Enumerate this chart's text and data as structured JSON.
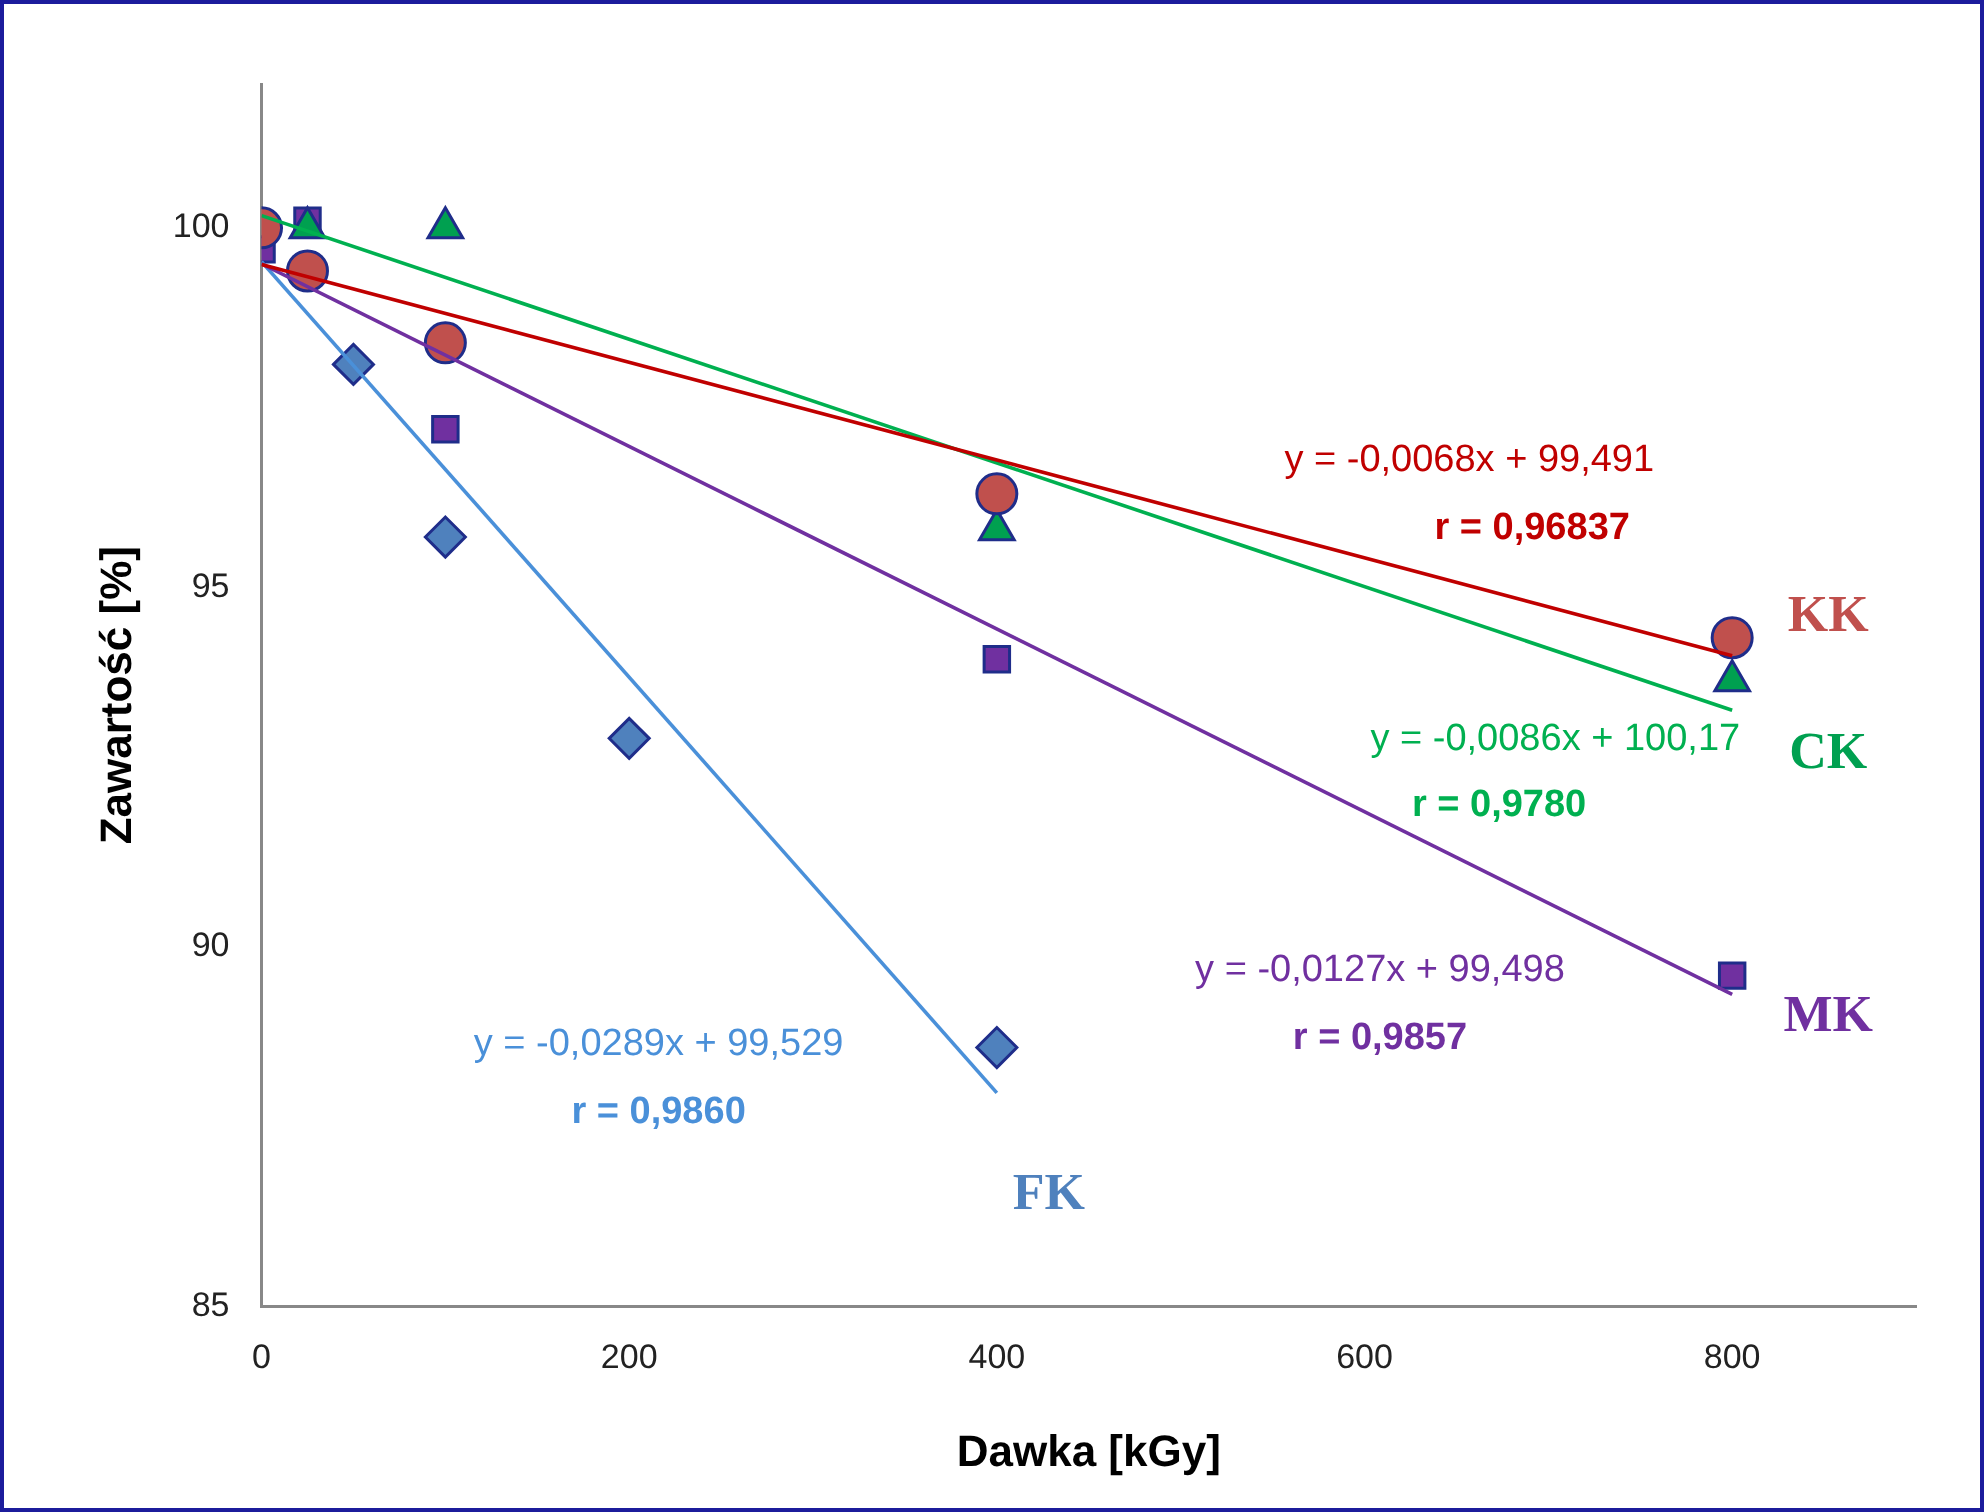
{
  "chart_data": {
    "type": "scatter",
    "xlabel": "Dawka [kGy]",
    "ylabel": "Zawartość [%]",
    "xlim": [
      0,
      900
    ],
    "ylim": [
      85,
      102
    ],
    "xticks": [
      0,
      200,
      400,
      600,
      800
    ],
    "yticks": [
      85,
      90,
      95,
      100
    ],
    "grid": false,
    "legend": false,
    "series": [
      {
        "name": "KK",
        "type": "scatter",
        "marker": "circle",
        "color": "#c0504d",
        "x": [
          0,
          25,
          100,
          400,
          800
        ],
        "values": [
          100,
          99.4,
          98.4,
          96.3,
          94.3
        ]
      },
      {
        "name": "CK",
        "type": "scatter",
        "marker": "triangle",
        "color": "#00a050",
        "x": [
          25,
          100,
          400,
          800
        ],
        "values": [
          100,
          100,
          95.8,
          93.7
        ]
      },
      {
        "name": "MK",
        "type": "scatter",
        "marker": "square",
        "color": "#7030a0",
        "x": [
          0,
          25,
          100,
          400,
          800
        ],
        "values": [
          99.7,
          100.1,
          97.2,
          94,
          89.6
        ]
      },
      {
        "name": "FK",
        "type": "scatter",
        "marker": "diamond",
        "color": "#4f81bd",
        "x": [
          50,
          100,
          200,
          400
        ],
        "values": [
          98.1,
          95.7,
          92.9,
          88.6
        ]
      },
      {
        "type": "line",
        "marker": "none",
        "color": "#c00000",
        "x": [
          0,
          800
        ],
        "values": [
          99.49,
          94.05
        ]
      },
      {
        "type": "line",
        "marker": "none",
        "color": "#00b050",
        "x": [
          0,
          800
        ],
        "values": [
          100.17,
          93.29
        ]
      },
      {
        "type": "line",
        "marker": "none",
        "color": "#7030a0",
        "x": [
          0,
          800
        ],
        "values": [
          99.5,
          89.34
        ]
      },
      {
        "type": "line",
        "marker": "none",
        "color": "#4a90d9",
        "x": [
          0,
          400
        ],
        "values": [
          99.53,
          87.97
        ]
      }
    ],
    "annotations": [
      "y = -0,0068x + 99,491",
      "r = 0,96837",
      "y = -0,0086x + 100,17",
      "r = 0,9780",
      "y = -0,0127x + 99,498",
      "r = 0,9857",
      "y = -0,0289x + 99,529",
      "r = 0,9860"
    ]
  }
}
